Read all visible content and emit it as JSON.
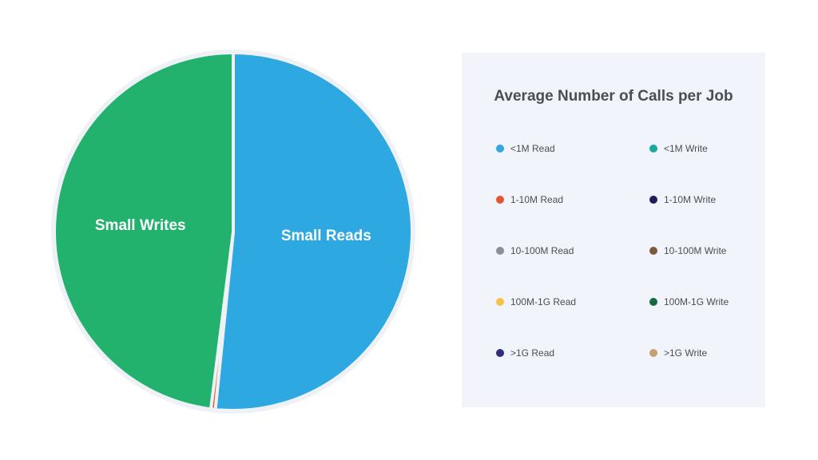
{
  "chart_data": {
    "type": "pie",
    "title": "Average Number of Calls per Job",
    "slices": [
      {
        "name": "<1M Read",
        "value": 51.6,
        "color": "#2da8e0",
        "label": "Small Reads"
      },
      {
        "name": "1-10M Read",
        "value": 0.4,
        "color": "#e4582f",
        "label": ""
      },
      {
        "name": "<1M Write",
        "value": 48.0,
        "color": "#23b26e",
        "label": "Small Writes"
      }
    ],
    "legend_placement": "right",
    "legend": [
      {
        "label": "<1M Read",
        "color": "#2da8e0"
      },
      {
        "label": "<1M Write",
        "color": "#18a99a"
      },
      {
        "label": "1-10M Read",
        "color": "#e4582f"
      },
      {
        "label": "1-10M Write",
        "color": "#1f1d5e"
      },
      {
        "label": "10-100M Read",
        "color": "#8c8f93"
      },
      {
        "label": "10-100M Write",
        "color": "#7b5a3c"
      },
      {
        "label": "100M-1G Read",
        "color": "#f8c246"
      },
      {
        "label": "100M-1G Write",
        "color": "#136b3e"
      },
      {
        "label": ">1G Read",
        "color": "#2b2e7c"
      },
      {
        "label": ">1G Write",
        "color": "#c79f72"
      }
    ]
  }
}
